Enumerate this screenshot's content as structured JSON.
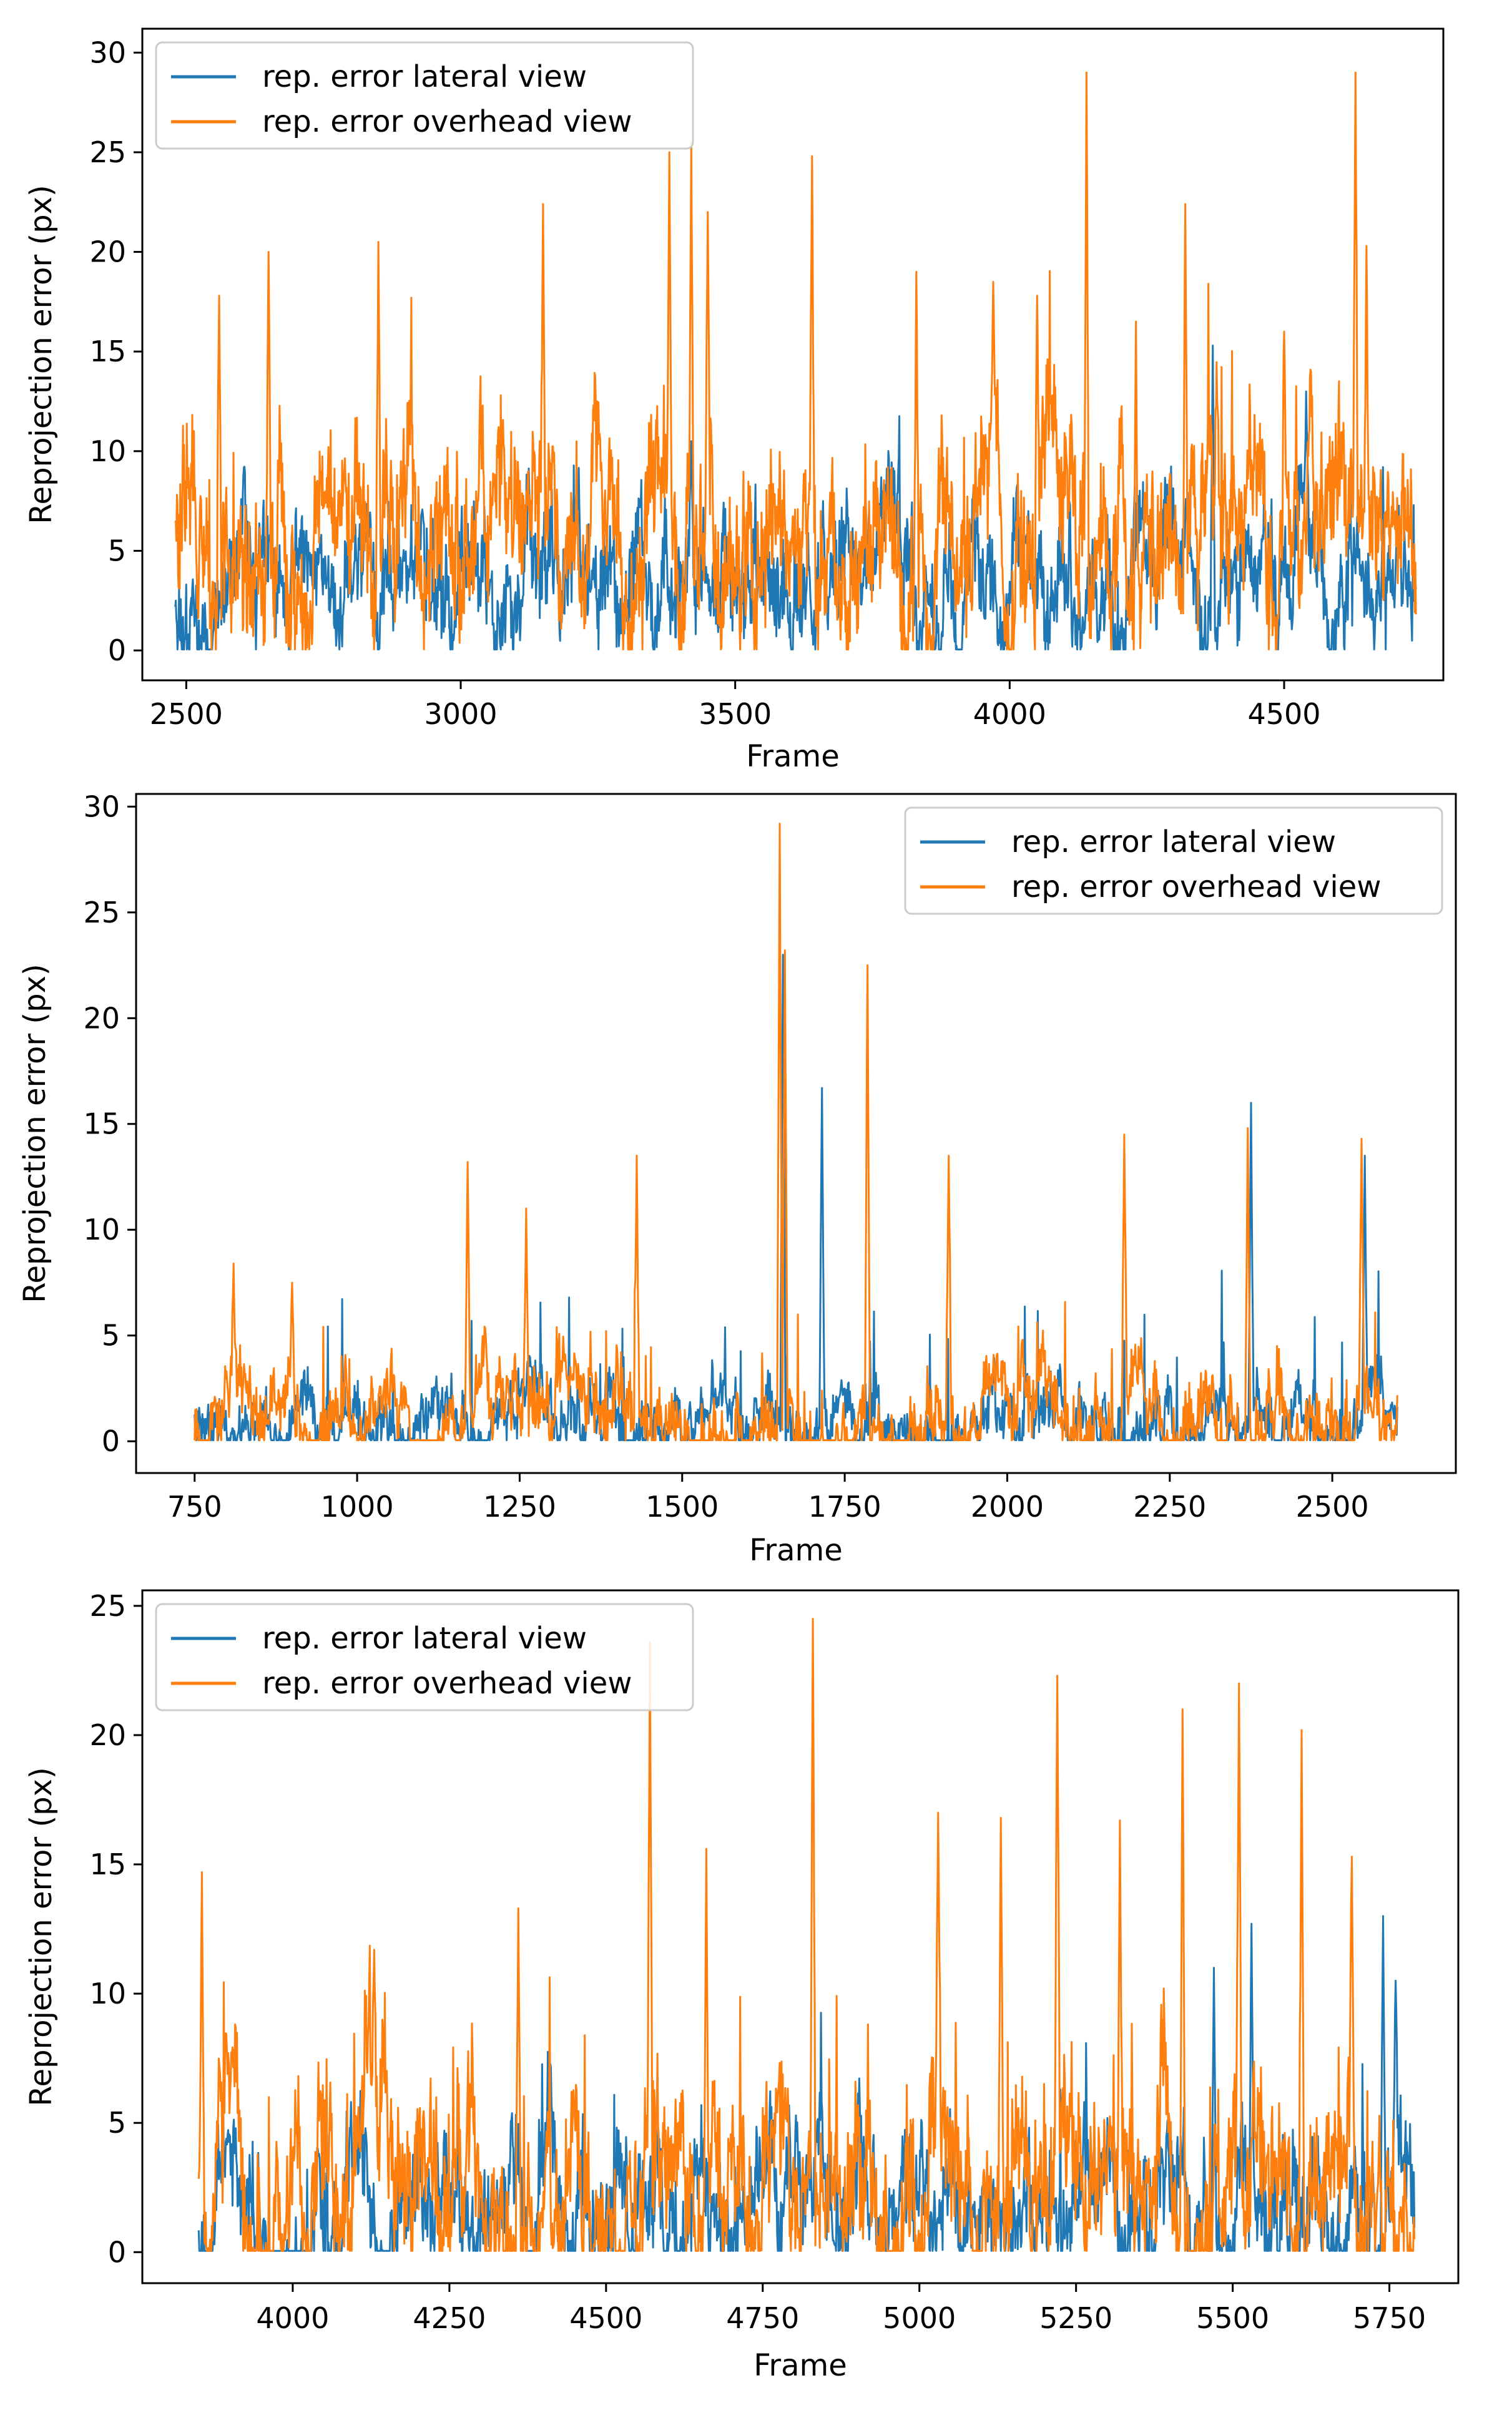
{
  "figure": {
    "colors": {
      "lateral": "#1f77b4",
      "overhead": "#ff7f0e",
      "axes": "#000000",
      "legend_border": "#cccccc"
    }
  },
  "chart_data": [
    {
      "type": "line",
      "title": "",
      "xlabel": "Frame",
      "ylabel": "Reprojection error (px)",
      "xlim": [
        2420,
        4790
      ],
      "ylim": [
        -1.5,
        31.2
      ],
      "xticks": [
        2500,
        3000,
        3500,
        4000,
        4500
      ],
      "yticks": [
        0,
        5,
        10,
        15,
        20,
        25,
        30
      ],
      "grid": false,
      "legend_position": "upper left",
      "series": [
        {
          "name": "rep. error lateral view",
          "color": "#1f77b4",
          "x_range": [
            2480,
            4740
          ],
          "baseline": 3.5,
          "noise": 3.0,
          "spike_scale": 0.55,
          "seed": 11,
          "peaks": [
            [
              3420,
              10.5
            ],
            [
              3660,
              7.5
            ],
            [
              4020,
              6.5
            ],
            [
              4370,
              15.3
            ],
            [
              4540,
              13.0
            ],
            [
              4620,
              9.0
            ],
            [
              4680,
              9.2
            ]
          ]
        },
        {
          "name": "rep. error overhead view",
          "color": "#ff7f0e",
          "x_range": [
            2480,
            4740
          ],
          "baseline": 5.5,
          "noise": 4.5,
          "spike_scale": 1.0,
          "seed": 29,
          "peaks": [
            [
              2560,
              17.8
            ],
            [
              2650,
              20.0
            ],
            [
              2850,
              20.5
            ],
            [
              3150,
              22.4
            ],
            [
              3380,
              25.0
            ],
            [
              3420,
              25.5
            ],
            [
              3450,
              22.0
            ],
            [
              3640,
              24.8
            ],
            [
              3830,
              19.0
            ],
            [
              3970,
              18.5
            ],
            [
              4050,
              17.8
            ],
            [
              4140,
              29.0
            ],
            [
              4230,
              16.5
            ],
            [
              4320,
              22.4
            ],
            [
              4500,
              16.0
            ],
            [
              4630,
              29.0
            ],
            [
              4650,
              20.3
            ]
          ]
        }
      ]
    },
    {
      "type": "line",
      "title": "",
      "xlabel": "Frame",
      "ylabel": "Reprojection error (px)",
      "xlim": [
        660,
        2690
      ],
      "ylim": [
        -1.5,
        30.6
      ],
      "xticks": [
        750,
        1000,
        1250,
        1500,
        1750,
        2000,
        2250,
        2500
      ],
      "yticks": [
        0,
        5,
        10,
        15,
        20,
        25,
        30
      ],
      "grid": false,
      "legend_position": "upper right",
      "series": [
        {
          "name": "rep. error lateral view",
          "color": "#1f77b4",
          "x_range": [
            750,
            2600
          ],
          "baseline": 0.8,
          "noise": 1.6,
          "spike_scale": 1.0,
          "seed": 41,
          "peaks": [
            [
              1655,
              23.0
            ],
            [
              1715,
              16.7
            ],
            [
              2375,
              16.0
            ],
            [
              2550,
              13.5
            ]
          ]
        },
        {
          "name": "rep. error overhead view",
          "color": "#ff7f0e",
          "x_range": [
            750,
            2600
          ],
          "baseline": 1.2,
          "noise": 2.2,
          "spike_scale": 1.0,
          "seed": 53,
          "peaks": [
            [
              810,
              8.4
            ],
            [
              900,
              7.5
            ],
            [
              1170,
              13.2
            ],
            [
              1260,
              11.0
            ],
            [
              1430,
              13.5
            ],
            [
              1650,
              29.2
            ],
            [
              1658,
              23.2
            ],
            [
              1785,
              22.5
            ],
            [
              1910,
              13.5
            ],
            [
              2180,
              14.5
            ],
            [
              2370,
              14.8
            ],
            [
              2545,
              14.3
            ]
          ]
        }
      ]
    },
    {
      "type": "line",
      "title": "",
      "xlabel": "Frame",
      "ylabel": "Reprojection error (px)",
      "xlim": [
        3760,
        5860
      ],
      "ylim": [
        -1.2,
        25.6
      ],
      "xticks": [
        4000,
        4250,
        4500,
        4750,
        5000,
        5250,
        5500,
        5750
      ],
      "yticks": [
        0,
        5,
        10,
        15,
        20,
        25
      ],
      "grid": false,
      "legend_position": "upper left",
      "series": [
        {
          "name": "rep. error lateral view",
          "color": "#1f77b4",
          "x_range": [
            3850,
            5790
          ],
          "baseline": 1.8,
          "noise": 2.8,
          "spike_scale": 0.6,
          "seed": 67,
          "peaks": [
            [
              5470,
              11.0
            ],
            [
              5530,
              12.7
            ],
            [
              5740,
              13.0
            ],
            [
              5760,
              10.5
            ]
          ]
        },
        {
          "name": "rep. error overhead view",
          "color": "#ff7f0e",
          "x_range": [
            3850,
            5790
          ],
          "baseline": 2.4,
          "noise": 3.8,
          "spike_scale": 1.0,
          "seed": 83,
          "peaks": [
            [
              3855,
              14.7
            ],
            [
              4130,
              11.7
            ],
            [
              4360,
              13.3
            ],
            [
              4570,
              23.6
            ],
            [
              4660,
              15.6
            ],
            [
              4830,
              24.5
            ],
            [
              5030,
              17.0
            ],
            [
              5130,
              16.8
            ],
            [
              5220,
              22.3
            ],
            [
              5320,
              16.7
            ],
            [
              5420,
              21.0
            ],
            [
              5510,
              22.0
            ],
            [
              5610,
              20.2
            ],
            [
              5690,
              15.3
            ]
          ]
        }
      ]
    }
  ]
}
